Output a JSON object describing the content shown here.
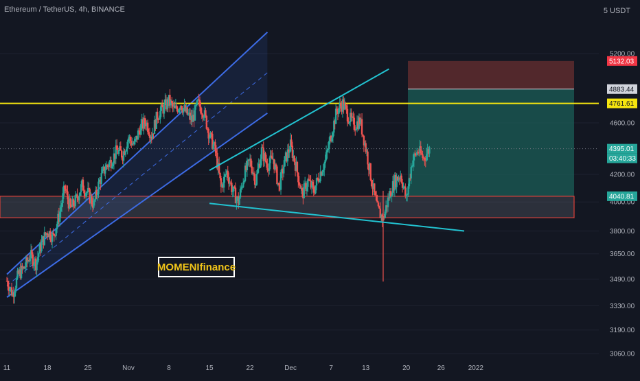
{
  "header": {
    "symbol": "Ethereum / TetherUS, 4h, BINANCE",
    "currency": "5 USDT",
    "watermark": "MOMENIfinance"
  },
  "colors": {
    "background": "#131722",
    "up": "#26a69a",
    "down": "#ef5350",
    "channel": "#3d6ce6",
    "wedge": "#22c3d1",
    "level": "#f5e50f",
    "zone": "#e0413b",
    "target": "#1b5d57",
    "stop": "#5a2a2d",
    "price_tag": "#26a69a",
    "stop_tag": "#f23645",
    "level_tag": "#f5e50f"
  },
  "chart_data": {
    "type": "candlestick",
    "title": "Ethereum / TetherUS, 4h, BINANCE",
    "y_axis": {
      "scale": "log",
      "ticks": [
        5200.0,
        4600.0,
        4200.0,
        4000.0,
        3800.0,
        3650.0,
        3490.0,
        3330.0,
        3190.0,
        3060.0
      ],
      "tick_labels": [
        "5200.00",
        "4600.00",
        "4200.00",
        "4000.00",
        "3800.00",
        "3650.00",
        "3490.00",
        "3330.00",
        "3190.00",
        "3060.00"
      ]
    },
    "x_axis": {
      "tick_labels": [
        "11",
        "18",
        "25",
        "Nov",
        "8",
        "15",
        "22",
        "Dec",
        "7",
        "13",
        "20",
        "26",
        "2022"
      ]
    },
    "price_tags": [
      {
        "label": "5132.03",
        "value": 5132.03,
        "kind": "stop"
      },
      {
        "label": "4883.44",
        "value": 4883.44,
        "kind": "line"
      },
      {
        "label": "4761.61",
        "value": 4761.61,
        "kind": "level"
      },
      {
        "label": "4395.01",
        "value": 4395.01,
        "kind": "last"
      },
      {
        "label": "03:40:33",
        "value": 4395.01,
        "kind": "countdown"
      },
      {
        "label": "4040.81",
        "value": 4040.81,
        "kind": "target"
      }
    ],
    "close_path": [
      [
        11,
        3480
      ],
      [
        12,
        3400
      ],
      [
        13,
        3520
      ],
      [
        14,
        3560
      ],
      [
        15,
        3640
      ],
      [
        16,
        3590
      ],
      [
        17,
        3720
      ],
      [
        18,
        3800
      ],
      [
        19,
        3760
      ],
      [
        20,
        3900
      ],
      [
        21,
        4100
      ],
      [
        22,
        3950
      ],
      [
        23,
        4020
      ],
      [
        24,
        4120
      ],
      [
        25,
        4060
      ],
      [
        26,
        3980
      ],
      [
        27,
        4150
      ],
      [
        28,
        4250
      ],
      [
        29,
        4300
      ],
      [
        30,
        4380
      ],
      [
        31,
        4350
      ],
      [
        32,
        4480
      ],
      [
        33,
        4420
      ],
      [
        34,
        4560
      ],
      [
        35,
        4610
      ],
      [
        36,
        4500
      ],
      [
        37,
        4660
      ],
      [
        38,
        4720
      ],
      [
        39,
        4780
      ],
      [
        40,
        4700
      ],
      [
        41,
        4760
      ],
      [
        42,
        4680
      ],
      [
        43,
        4620
      ],
      [
        44,
        4760
      ],
      [
        45,
        4690
      ],
      [
        46,
        4500
      ],
      [
        47,
        4380
      ],
      [
        48,
        4100
      ],
      [
        49,
        4220
      ],
      [
        50,
        4080
      ],
      [
        51,
        4000
      ],
      [
        52,
        4200
      ],
      [
        53,
        4300
      ],
      [
        54,
        4150
      ],
      [
        55,
        4380
      ],
      [
        56,
        4270
      ],
      [
        57,
        4320
      ],
      [
        58,
        4100
      ],
      [
        59,
        4300
      ],
      [
        60,
        4420
      ],
      [
        61,
        4250
      ],
      [
        62,
        4050
      ],
      [
        63,
        4150
      ],
      [
        64,
        4080
      ],
      [
        65,
        4200
      ],
      [
        66,
        4300
      ],
      [
        67,
        4500
      ],
      [
        68,
        4700
      ],
      [
        69,
        4760
      ],
      [
        70,
        4650
      ],
      [
        71,
        4580
      ],
      [
        72,
        4620
      ],
      [
        73,
        4400
      ],
      [
        74,
        4150
      ],
      [
        75,
        3950
      ],
      [
        76,
        3880
      ],
      [
        77,
        4040
      ],
      [
        78,
        4150
      ],
      [
        79,
        4200
      ],
      [
        80,
        4020
      ],
      [
        81,
        4300
      ],
      [
        82,
        4380
      ],
      [
        83,
        4320
      ],
      [
        84,
        4395
      ]
    ],
    "annotations": {
      "ascending_channel": {
        "upper": [
          [
            11,
            3520
          ],
          [
            56,
            5400
          ]
        ],
        "lower": [
          [
            11,
            3380
          ],
          [
            56,
            4680
          ]
        ]
      },
      "descending_support": [
        [
          46,
          3990
        ],
        [
          90,
          3800
        ]
      ],
      "ascending_resistance": [
        [
          46,
          4230
        ],
        [
          77,
          5060
        ]
      ],
      "horizontal_level": 4761.61,
      "support_zone": [
        3890,
        4040.81
      ],
      "target_zone": [
        4040.81,
        4883.44
      ],
      "stop_zone": [
        4883.44,
        5132.03
      ]
    }
  }
}
